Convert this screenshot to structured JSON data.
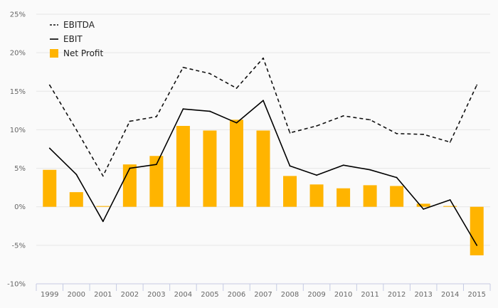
{
  "chart_data": {
    "type": "bar",
    "categories": [
      "1999",
      "2000",
      "2001",
      "2002",
      "2003",
      "2004",
      "2005",
      "2006",
      "2007",
      "2008",
      "2009",
      "2010",
      "2011",
      "2012",
      "2013",
      "2014",
      "2015"
    ],
    "series": [
      {
        "name": "EBITDA",
        "kind": "line",
        "style": "dashed",
        "color": "#111111",
        "values": [
          15.8,
          10.0,
          4.0,
          11.1,
          11.7,
          18.1,
          17.3,
          15.4,
          19.3,
          9.6,
          10.5,
          11.8,
          11.3,
          9.5,
          9.4,
          8.4,
          15.8
        ]
      },
      {
        "name": "EBIT",
        "kind": "line",
        "style": "solid",
        "color": "#000000",
        "values": [
          7.6,
          4.2,
          -1.9,
          5.0,
          5.5,
          12.7,
          12.4,
          10.9,
          13.8,
          5.3,
          4.1,
          5.4,
          4.8,
          3.8,
          -0.3,
          0.9,
          -5.0
        ]
      },
      {
        "name": "Net Profit",
        "kind": "bar",
        "color": "#ffb400",
        "values": [
          4.8,
          1.9,
          0.1,
          5.5,
          6.6,
          10.5,
          9.9,
          11.3,
          9.9,
          4.0,
          2.9,
          2.4,
          2.8,
          2.7,
          0.4,
          0.1,
          -6.3
        ]
      }
    ],
    "ylim": [
      -10,
      25
    ],
    "yticks": [
      -10,
      -5,
      0,
      5,
      10,
      15,
      20,
      25
    ],
    "ytick_labels": [
      "-10%",
      "-5%",
      "0%",
      "5%",
      "10%",
      "15%",
      "20%",
      "25%"
    ],
    "grid": true,
    "legend_position": "top-left"
  }
}
